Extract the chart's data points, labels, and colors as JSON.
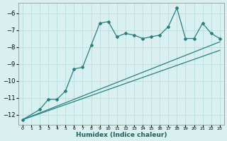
{
  "xlabel": "Humidex (Indice chaleur)",
  "background_color": "#d8f0f0",
  "grid_color": "#b8dede",
  "line_color": "#2a7f7f",
  "xlim": [
    -0.5,
    23.5
  ],
  "ylim": [
    -12.6,
    -5.4
  ],
  "yticks": [
    -12,
    -11,
    -10,
    -9,
    -8,
    -7,
    -6
  ],
  "xticks": [
    0,
    1,
    2,
    3,
    4,
    5,
    6,
    7,
    8,
    9,
    10,
    11,
    12,
    13,
    14,
    15,
    16,
    17,
    18,
    19,
    20,
    21,
    22,
    23
  ],
  "line1_x": [
    0,
    2,
    3,
    4,
    5,
    6,
    7,
    8,
    9,
    10,
    11,
    12,
    13,
    14,
    15,
    16,
    17,
    18,
    19,
    20,
    21,
    22,
    23
  ],
  "line1_y": [
    -12.3,
    -11.7,
    -11.1,
    -11.1,
    -10.6,
    -9.3,
    -9.2,
    -7.9,
    -6.6,
    -6.5,
    -7.4,
    -7.2,
    -7.3,
    -7.5,
    -7.4,
    -7.3,
    -6.8,
    -5.7,
    -7.5,
    -7.5,
    -6.6,
    -7.2,
    -7.5
  ],
  "line2_x": [
    0,
    23
  ],
  "line2_y": [
    -12.3,
    -7.7
  ],
  "line3_x": [
    0,
    23
  ],
  "line3_y": [
    -12.3,
    -8.2
  ]
}
